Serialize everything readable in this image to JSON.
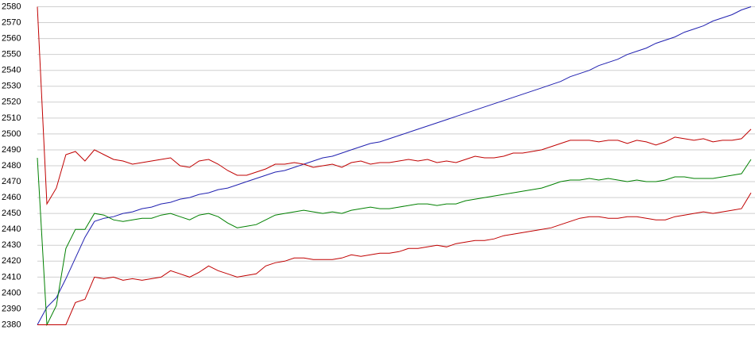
{
  "chart_data": {
    "type": "line",
    "ylim": [
      2380,
      2580
    ],
    "yticks": [
      2380,
      2390,
      2400,
      2410,
      2420,
      2430,
      2440,
      2450,
      2460,
      2470,
      2480,
      2490,
      2500,
      2510,
      2520,
      2530,
      2540,
      2550,
      2560,
      2570,
      2580
    ],
    "grid": true,
    "series": [
      {
        "color": "#2020b0",
        "values": [
          2380,
          2391,
          2397,
          2409,
          2422,
          2435,
          2445,
          2447,
          2448,
          2450,
          2451,
          2453,
          2454,
          2456,
          2457,
          2459,
          2460,
          2462,
          2463,
          2465,
          2466,
          2468,
          2470,
          2472,
          2474,
          2476,
          2477,
          2479,
          2481,
          2483,
          2485,
          2486,
          2488,
          2490,
          2492,
          2494,
          2495,
          2497,
          2499,
          2501,
          2503,
          2505,
          2507,
          2509,
          2511,
          2513,
          2515,
          2517,
          2519,
          2521,
          2523,
          2525,
          2527,
          2529,
          2531,
          2533,
          2536,
          2538,
          2540,
          2543,
          2545,
          2547,
          2550,
          2552,
          2554,
          2557,
          2559,
          2561,
          2564,
          2566,
          2568,
          2571,
          2573,
          2575,
          2578,
          2580
        ]
      },
      {
        "color": "#c00000",
        "values": [
          2580,
          2456,
          2466,
          2487,
          2489,
          2483,
          2490,
          2487,
          2484,
          2483,
          2481,
          2482,
          2483,
          2484,
          2485,
          2480,
          2479,
          2483,
          2484,
          2481,
          2477,
          2474,
          2474,
          2476,
          2478,
          2481,
          2481,
          2482,
          2481,
          2479,
          2480,
          2481,
          2479,
          2482,
          2483,
          2481,
          2482,
          2482,
          2483,
          2484,
          2483,
          2484,
          2482,
          2483,
          2482,
          2484,
          2486,
          2485,
          2485,
          2486,
          2488,
          2488,
          2489,
          2490,
          2492,
          2494,
          2496,
          2496,
          2496,
          2495,
          2496,
          2496,
          2494,
          2496,
          2495,
          2493,
          2495,
          2498,
          2497,
          2496,
          2497,
          2495,
          2496,
          2496,
          2497,
          2503
        ]
      },
      {
        "color": "#008000",
        "values": [
          2485,
          2380,
          2392,
          2428,
          2440,
          2440,
          2450,
          2449,
          2446,
          2445,
          2446,
          2447,
          2447,
          2449,
          2450,
          2448,
          2446,
          2449,
          2450,
          2448,
          2444,
          2441,
          2442,
          2443,
          2446,
          2449,
          2450,
          2451,
          2452,
          2451,
          2450,
          2451,
          2450,
          2452,
          2453,
          2454,
          2453,
          2453,
          2454,
          2455,
          2456,
          2456,
          2455,
          2456,
          2456,
          2458,
          2459,
          2460,
          2461,
          2462,
          2463,
          2464,
          2465,
          2466,
          2468,
          2470,
          2471,
          2471,
          2472,
          2471,
          2472,
          2471,
          2470,
          2471,
          2470,
          2470,
          2471,
          2473,
          2473,
          2472,
          2472,
          2472,
          2473,
          2474,
          2475,
          2484
        ]
      },
      {
        "color": "#c00000",
        "values": [
          2380,
          2380,
          2380,
          2380,
          2394,
          2396,
          2410,
          2409,
          2410,
          2408,
          2409,
          2408,
          2409,
          2410,
          2414,
          2412,
          2410,
          2413,
          2417,
          2414,
          2412,
          2410,
          2411,
          2412,
          2417,
          2419,
          2420,
          2422,
          2422,
          2421,
          2421,
          2421,
          2422,
          2424,
          2423,
          2424,
          2425,
          2425,
          2426,
          2428,
          2428,
          2429,
          2430,
          2429,
          2431,
          2432,
          2433,
          2433,
          2434,
          2436,
          2437,
          2438,
          2439,
          2440,
          2441,
          2443,
          2445,
          2447,
          2448,
          2448,
          2447,
          2447,
          2448,
          2448,
          2447,
          2446,
          2446,
          2448,
          2449,
          2450,
          2451,
          2450,
          2451,
          2452,
          2453,
          2463
        ]
      }
    ]
  }
}
